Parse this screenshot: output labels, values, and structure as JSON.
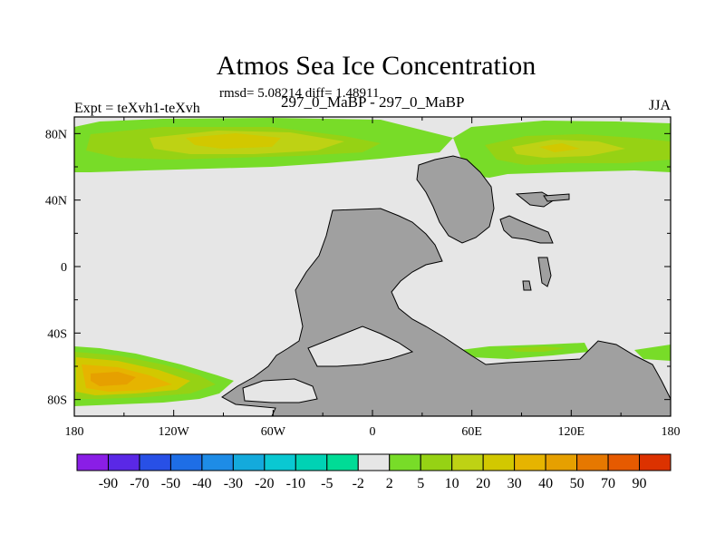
{
  "chart_data": {
    "type": "heatmap",
    "title": "Atmos Sea Ice Concentration",
    "stats_text": "rmsd= 5.08214 diff= 1.48911",
    "left_label": "Expt = teXvh1-teXvh",
    "center_label": "297_0_MaBP - 297_0_MaBP",
    "right_label": "JJA",
    "xlim": [
      -180,
      180
    ],
    "ylim": [
      -90,
      90
    ],
    "x_ticks": [
      {
        "value": -180,
        "label": "180"
      },
      {
        "value": -120,
        "label": "120W"
      },
      {
        "value": -60,
        "label": "60W"
      },
      {
        "value": 0,
        "label": "0"
      },
      {
        "value": 60,
        "label": "60E"
      },
      {
        "value": 120,
        "label": "120E"
      },
      {
        "value": 180,
        "label": "180"
      }
    ],
    "y_ticks": [
      {
        "value": 80,
        "label": "80N"
      },
      {
        "value": 40,
        "label": "40N"
      },
      {
        "value": 0,
        "label": "0"
      },
      {
        "value": -40,
        "label": "40S"
      },
      {
        "value": -80,
        "label": "80S"
      }
    ],
    "colorbar": {
      "labels": [
        "-90",
        "-70",
        "-50",
        "-40",
        "-30",
        "-20",
        "-10",
        "-5",
        "-2",
        "2",
        "5",
        "10",
        "20",
        "30",
        "40",
        "50",
        "70",
        "90"
      ],
      "colors": [
        "#8a1ee6",
        "#5a28e6",
        "#2850e6",
        "#1e6ee6",
        "#1e8ce6",
        "#14aadc",
        "#0ac8d2",
        "#00d2b4",
        "#00dc96",
        "#e6e6e6",
        "#78dc28",
        "#96d214",
        "#bed214",
        "#d2c800",
        "#e6b400",
        "#e6a000",
        "#e67800",
        "#e65a00",
        "#dc3200"
      ]
    },
    "fields": [
      {
        "name": "Arctic sea ice difference (western)",
        "value_range": [
          2,
          30
        ],
        "dominant_level": "5-10"
      },
      {
        "name": "Arctic sea ice difference (eastern)",
        "value_range": [
          2,
          20
        ],
        "dominant_level": "5-10"
      },
      {
        "name": "Southern ocean sea ice difference (south-west)",
        "value_range": [
          2,
          40
        ],
        "dominant_level": "20-30"
      },
      {
        "name": "Southern ocean sea ice difference (coastal east)",
        "value_range": [
          2,
          10
        ],
        "dominant_level": "2-5"
      }
    ]
  }
}
